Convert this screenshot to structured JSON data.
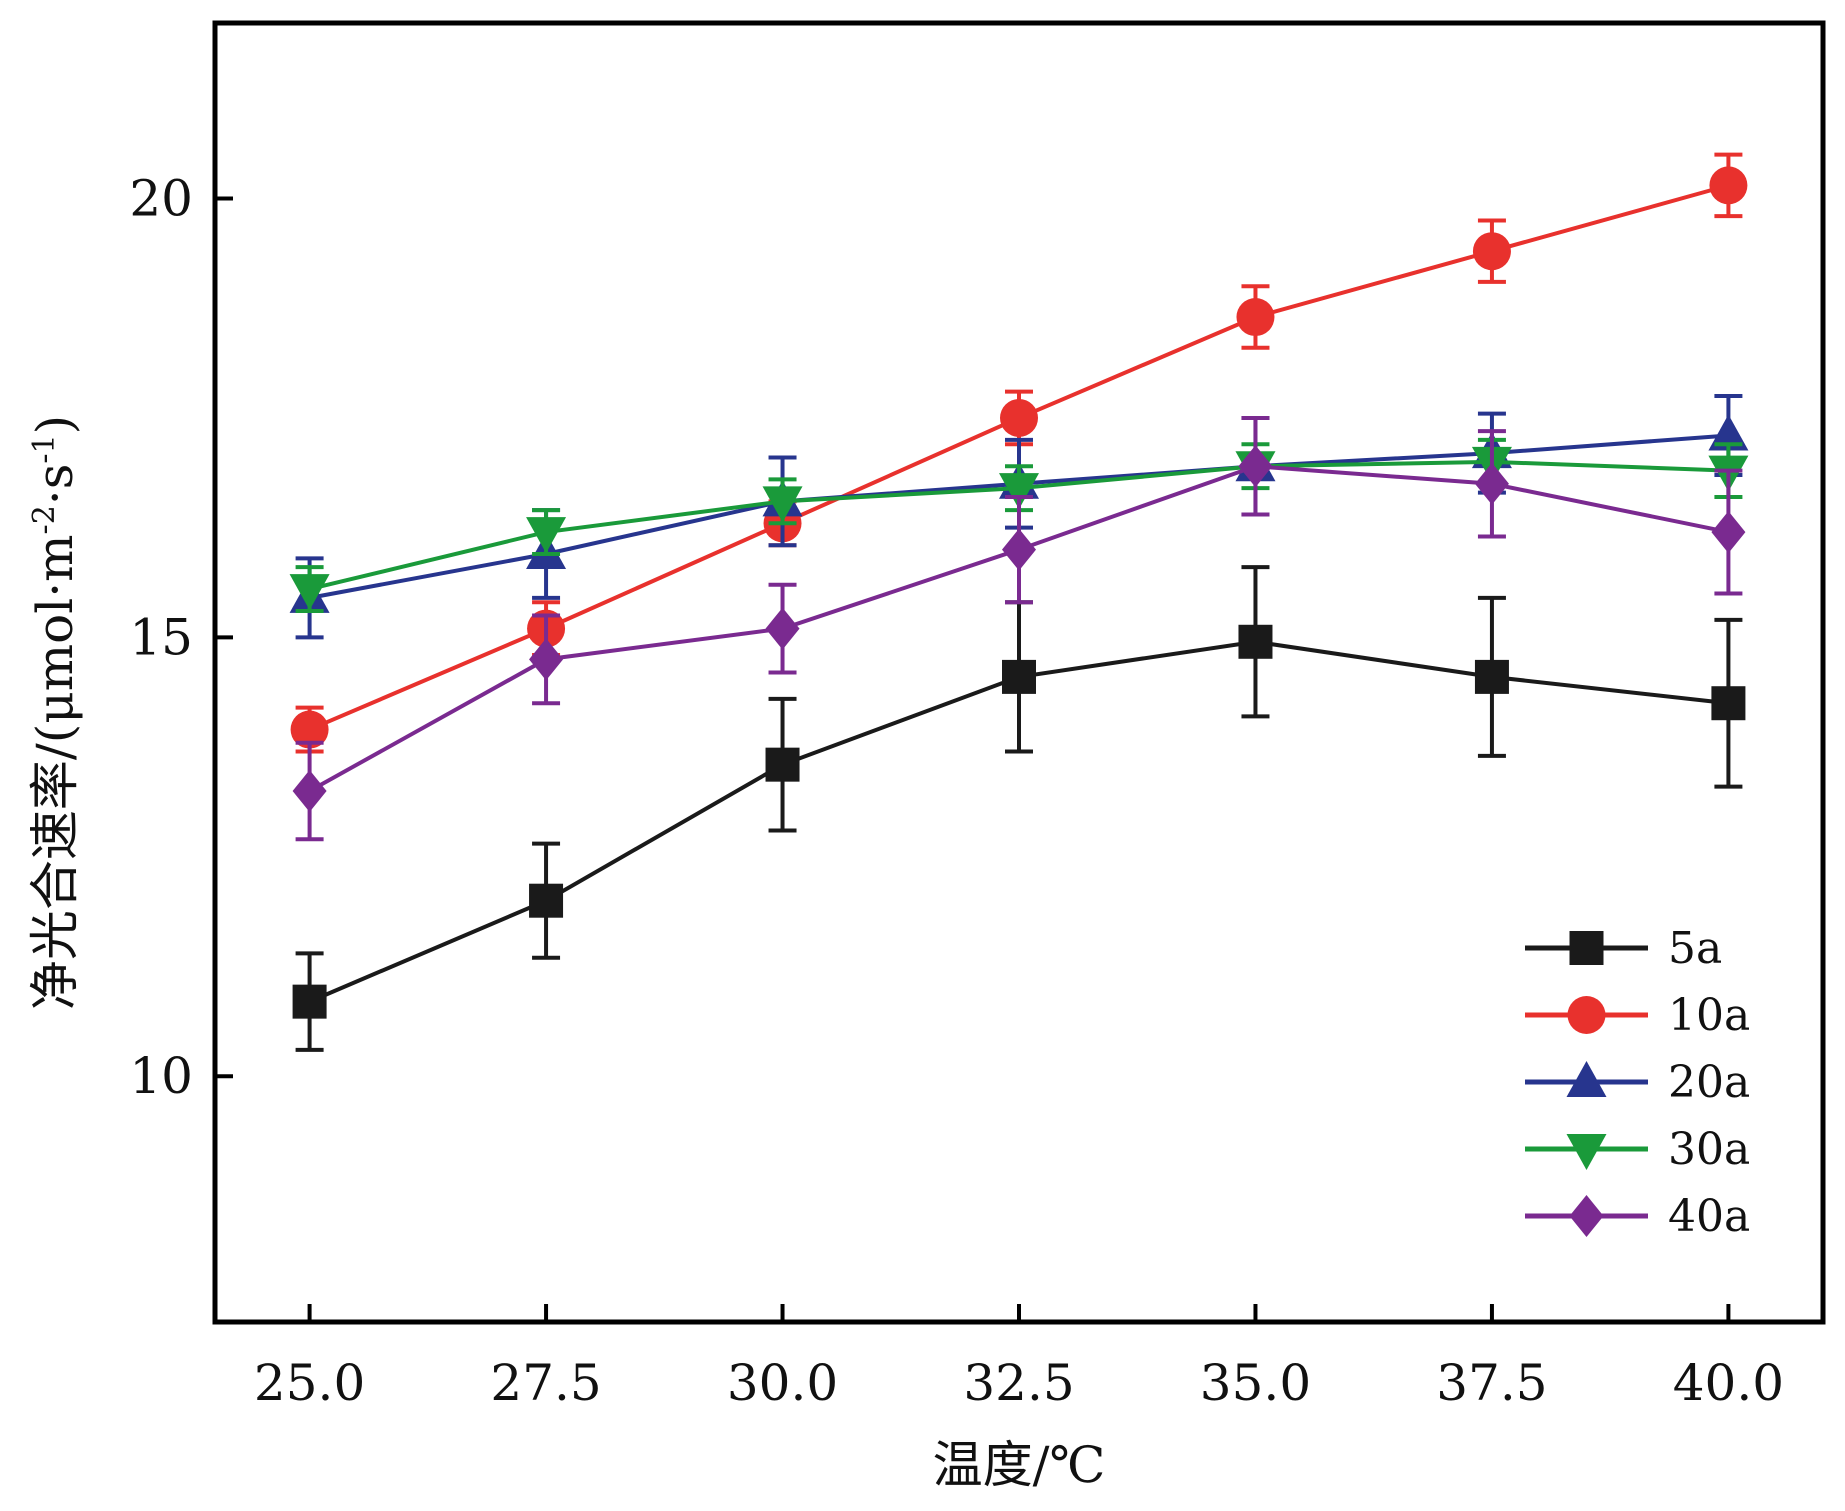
{
  "chart_data": {
    "type": "line",
    "xlabel": "温度/℃",
    "ylabel": "净光合速率/(μmol·m⁻²·s⁻¹)",
    "ylabel_parts": {
      "base": "净光合速率/(μmol·m",
      "sup1": "-2",
      "mid": "·s",
      "sup2": "-1",
      "end": ")"
    },
    "x": [
      25.0,
      27.5,
      30.0,
      32.5,
      35.0,
      37.5,
      40.0
    ],
    "x_tick_labels": [
      "25.0",
      "27.5",
      "30.0",
      "32.5",
      "35.0",
      "37.5",
      "40.0"
    ],
    "y_ticks": [
      10,
      15,
      20
    ],
    "y_tick_labels": [
      "10",
      "15",
      "20"
    ],
    "xlim": [
      24.0,
      41.0
    ],
    "ylim": [
      7.2,
      22.0
    ],
    "grid": false,
    "legend_position": "bottom-right",
    "series": [
      {
        "name": "5a",
        "color": "#1a1a1a",
        "marker": "square",
        "values": [
          10.85,
          12.0,
          13.55,
          14.55,
          14.95,
          14.55,
          14.25
        ],
        "errors": [
          0.55,
          0.65,
          0.75,
          0.85,
          0.85,
          0.9,
          0.95
        ]
      },
      {
        "name": "10a",
        "color": "#e8312d",
        "marker": "circle",
        "values": [
          13.95,
          15.1,
          16.3,
          17.5,
          18.65,
          19.4,
          20.15
        ],
        "errors": [
          0.25,
          0.3,
          0.25,
          0.3,
          0.35,
          0.35,
          0.35
        ]
      },
      {
        "name": "20a",
        "color": "#27358e",
        "marker": "triangle-up",
        "values": [
          15.45,
          15.95,
          16.55,
          16.75,
          16.95,
          17.1,
          17.3
        ],
        "errors": [
          0.45,
          0.5,
          0.5,
          0.5,
          0.55,
          0.45,
          0.45
        ]
      },
      {
        "name": "30a",
        "color": "#1a9a3a",
        "marker": "triangle-down",
        "values": [
          15.55,
          16.2,
          16.55,
          16.7,
          16.95,
          17.0,
          16.9
        ],
        "errors": [
          0.25,
          0.25,
          0.25,
          0.25,
          0.25,
          0.25,
          0.3
        ]
      },
      {
        "name": "40a",
        "color": "#7a2a90",
        "marker": "diamond",
        "values": [
          13.25,
          14.75,
          15.1,
          16.0,
          16.95,
          16.75,
          16.2
        ],
        "errors": [
          0.55,
          0.5,
          0.5,
          0.6,
          0.55,
          0.6,
          0.7
        ]
      }
    ]
  }
}
